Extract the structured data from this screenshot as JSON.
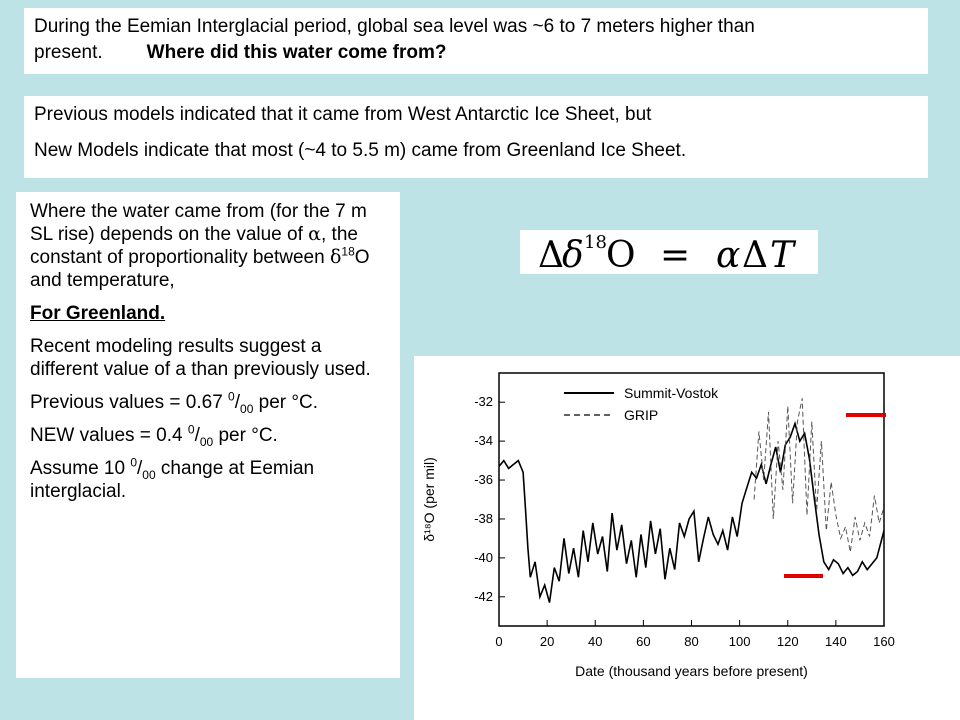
{
  "box1": {
    "line": "During the Eemian Interglacial period, global sea level was ~6 to 7 meters higher than present.",
    "question": "Where did this water come from?"
  },
  "box2": {
    "line1": "Previous models indicated that it came from West Antarctic Ice Sheet,  but",
    "line2": "New Models indicate that most (~4 to 5.5 m) came from Greenland Ice Sheet."
  },
  "box3": {
    "p1_a": "Where the water came from (for the 7 m SL rise) depends on the value of ",
    "alpha": "α",
    "p1_b": ", the constant of proportionality between ",
    "delta": "δ",
    "sup18": "18",
    "p1_c": "O and temperature,",
    "for_greenland": "For Greenland.",
    "p3": "Recent modeling results suggest a different value of a than previously used.",
    "prev_a": "Previous values = 0.67 ",
    "sup0": "0",
    "slash": "/",
    "sub00": "00",
    "prev_b": " per °C.",
    "new_a": "NEW values = 0.4 ",
    "new_b": " per °C.",
    "assume_a": "Assume 10 ",
    "assume_b": " change at Eemian interglacial."
  },
  "formula": {
    "delta_cap": "Δ",
    "delta": "δ",
    "sup": "18",
    "O": "O",
    "equals": "=",
    "alpha": "α",
    "T": "T"
  },
  "chart_data": {
    "type": "line",
    "xlabel": "Date (thousand years before present)",
    "ylabel": "δ¹⁸O (per mil)",
    "xlim": [
      0,
      160
    ],
    "ylim": [
      -43.5,
      -30.5
    ],
    "xticks": [
      0,
      20,
      40,
      60,
      80,
      100,
      120,
      140,
      160
    ],
    "yticks": [
      -32,
      -34,
      -36,
      -38,
      -40,
      -42
    ],
    "legend_position": "top",
    "series": [
      {
        "name": "Summit-Vostok",
        "style": "solid",
        "x": [
          0,
          2,
          4,
          6,
          8,
          10,
          11,
          12,
          13,
          15,
          17,
          19,
          21,
          23,
          25,
          27,
          29,
          31,
          33,
          35,
          37,
          39,
          41,
          43,
          45,
          47,
          49,
          51,
          53,
          55,
          57,
          59,
          61,
          63,
          65,
          67,
          69,
          71,
          73,
          75,
          77,
          79,
          81,
          83,
          85,
          87,
          89,
          91,
          93,
          95,
          97,
          99,
          101,
          103,
          105,
          107,
          109,
          111,
          113,
          115,
          117,
          119,
          121,
          123,
          125,
          127,
          129,
          131,
          133,
          135,
          137,
          139,
          141,
          143,
          145,
          147,
          149,
          151,
          153,
          155,
          157,
          160
        ],
        "y": [
          -35.3,
          -35.0,
          -35.4,
          -35.2,
          -35.0,
          -35.6,
          -37.5,
          -39.5,
          -41.0,
          -40.2,
          -42.0,
          -41.4,
          -42.3,
          -40.5,
          -41.2,
          -39.0,
          -40.8,
          -39.5,
          -41.0,
          -38.6,
          -40.2,
          -38.2,
          -39.8,
          -38.9,
          -40.7,
          -37.7,
          -39.6,
          -38.3,
          -40.3,
          -39.1,
          -41.0,
          -38.8,
          -40.5,
          -38.1,
          -39.8,
          -38.5,
          -41.1,
          -39.5,
          -40.6,
          -38.2,
          -38.9,
          -38.0,
          -37.6,
          -40.2,
          -39.0,
          -37.9,
          -38.8,
          -39.3,
          -38.6,
          -39.6,
          -37.9,
          -38.9,
          -37.2,
          -36.4,
          -35.6,
          -35.9,
          -35.2,
          -36.2,
          -35.2,
          -34.3,
          -35.6,
          -34.2,
          -33.8,
          -33.1,
          -34.0,
          -33.6,
          -34.9,
          -36.9,
          -38.8,
          -40.2,
          -40.6,
          -40.1,
          -40.3,
          -40.8,
          -40.5,
          -40.9,
          -40.7,
          -40.2,
          -40.6,
          -40.3,
          -40.0,
          -38.6
        ]
      },
      {
        "name": "GRIP",
        "style": "dashed",
        "x": [
          106,
          108,
          110,
          112,
          114,
          116,
          118,
          120,
          122,
          124,
          126,
          128,
          130,
          132,
          134,
          136,
          138,
          140,
          142,
          144,
          146,
          148,
          150,
          152,
          154,
          156,
          158,
          160
        ],
        "y": [
          -37.0,
          -33.5,
          -36.0,
          -32.5,
          -38.0,
          -34.0,
          -36.5,
          -32.2,
          -37.2,
          -33.0,
          -31.8,
          -37.8,
          -33.0,
          -37.6,
          -34.0,
          -38.6,
          -36.1,
          -37.8,
          -39.0,
          -38.4,
          -39.7,
          -37.9,
          -39.1,
          -38.2,
          -38.9,
          -36.8,
          -38.2,
          -37.4
        ]
      }
    ]
  }
}
